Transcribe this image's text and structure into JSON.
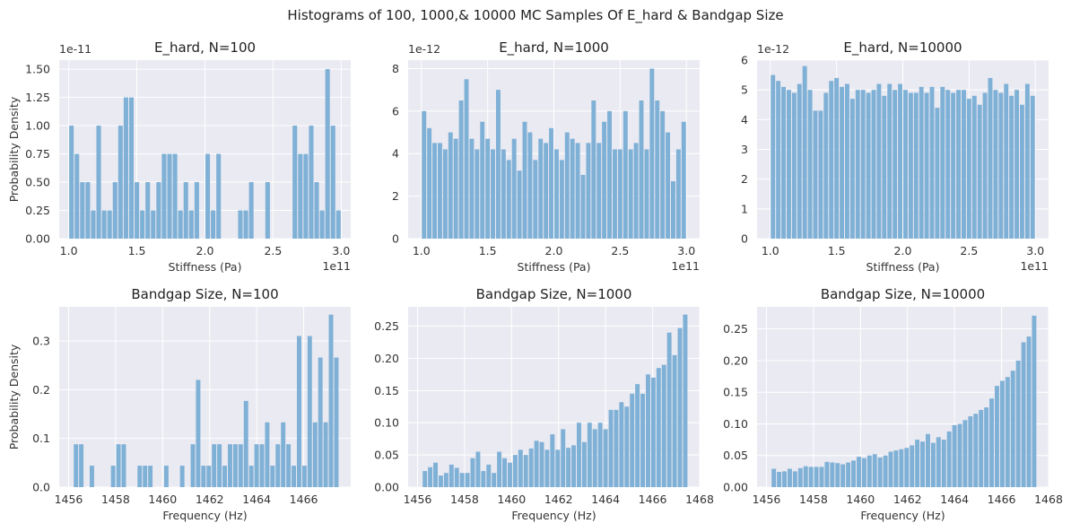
{
  "figure": {
    "suptitle": "Histograms of 100, 1000,& 10000 MC Samples Of E_hard & Bandgap Size",
    "plot_bg": "#eaeaf2",
    "grid_color": "#ffffff",
    "bar_color": "#7fb0d6"
  },
  "chart_data": [
    {
      "type": "bar",
      "title": "E_hard, N=100",
      "xlabel": "Stiffness (Pa)",
      "ylabel": "Probability Density",
      "x_offset_label": "1e11",
      "y_offset_label": "1e-11",
      "bins": 50,
      "bin_range": [
        1.0,
        3.0
      ],
      "xlim": [
        0.93,
        3.07
      ],
      "ylim": [
        0,
        1.58
      ],
      "xticks": [
        1.0,
        1.5,
        2.0,
        2.5,
        3.0
      ],
      "xtick_labels": [
        "1.0",
        "1.5",
        "2.0",
        "2.5",
        "3.0"
      ],
      "yticks": [
        0,
        0.25,
        0.5,
        0.75,
        1.0,
        1.25,
        1.5
      ],
      "ytick_labels": [
        "0.00",
        "0.25",
        "0.50",
        "0.75",
        "1.00",
        "1.25",
        "1.50"
      ],
      "values": [
        1.0,
        0.75,
        0.5,
        0.5,
        0.25,
        1.0,
        0.25,
        0.25,
        0.5,
        1.0,
        1.25,
        1.25,
        0.5,
        0.25,
        0.5,
        0.25,
        0.5,
        0.75,
        0.75,
        0.75,
        0.25,
        0.5,
        0.25,
        0.5,
        0,
        0.75,
        0.25,
        0.75,
        0,
        0,
        0,
        0.25,
        0.25,
        0.5,
        0,
        0,
        0.5,
        0,
        0,
        0,
        0,
        1.0,
        0.75,
        0.75,
        1.0,
        0.5,
        0.25,
        1.5,
        1.0,
        0.25
      ]
    },
    {
      "type": "bar",
      "title": "E_hard, N=1000",
      "xlabel": "Stiffness (Pa)",
      "ylabel": "",
      "x_offset_label": "1e11",
      "y_offset_label": "1e-12",
      "bins": 50,
      "bin_range": [
        1.0,
        3.0
      ],
      "xlim": [
        0.9,
        3.1
      ],
      "ylim": [
        0,
        8.4
      ],
      "xticks": [
        1.0,
        1.5,
        2.0,
        2.5,
        3.0
      ],
      "xtick_labels": [
        "1.0",
        "1.5",
        "2.0",
        "2.5",
        "3.0"
      ],
      "yticks": [
        0,
        2,
        4,
        6,
        8
      ],
      "ytick_labels": [
        "0",
        "2",
        "4",
        "6",
        "8"
      ],
      "values": [
        6.0,
        5.2,
        4.5,
        4.5,
        4.2,
        5.0,
        4.7,
        6.5,
        7.5,
        4.7,
        4.2,
        5.5,
        4.7,
        4.2,
        7.0,
        4.2,
        3.7,
        4.7,
        3.2,
        5.5,
        5.0,
        3.7,
        4.7,
        4.5,
        5.2,
        4.2,
        3.7,
        5.0,
        4.7,
        4.5,
        3.0,
        4.5,
        6.5,
        4.5,
        5.5,
        6.0,
        4.2,
        4.2,
        6.0,
        4.2,
        4.5,
        6.5,
        4.2,
        8.0,
        6.5,
        6.0,
        5.0,
        2.7,
        4.2,
        5.5
      ]
    },
    {
      "type": "bar",
      "title": "E_hard, N=10000",
      "xlabel": "Stiffness (Pa)",
      "ylabel": "",
      "x_offset_label": "1e11",
      "y_offset_label": "1e-12",
      "bins": 50,
      "bin_range": [
        1.0,
        3.0
      ],
      "xlim": [
        0.9,
        3.1
      ],
      "ylim": [
        0,
        6.0
      ],
      "xticks": [
        1.0,
        1.5,
        2.0,
        2.5,
        3.0
      ],
      "xtick_labels": [
        "1.0",
        "1.5",
        "2.0",
        "2.5",
        "3.0"
      ],
      "yticks": [
        0,
        1,
        2,
        3,
        4,
        5,
        6
      ],
      "ytick_labels": [
        "0",
        "1",
        "2",
        "3",
        "4",
        "5",
        "6"
      ],
      "values": [
        5.5,
        5.3,
        5.1,
        5.0,
        4.9,
        5.2,
        5.8,
        5.0,
        4.3,
        4.3,
        4.9,
        5.3,
        5.4,
        5.1,
        5.2,
        4.7,
        5.0,
        5.0,
        4.9,
        5.0,
        5.2,
        4.8,
        5.2,
        5.0,
        5.2,
        5.0,
        4.9,
        4.9,
        5.1,
        4.9,
        5.1,
        4.4,
        5.1,
        5.0,
        4.9,
        5.0,
        5.0,
        4.7,
        4.8,
        4.5,
        4.9,
        5.4,
        5.0,
        4.9,
        5.2,
        4.8,
        5.0,
        4.5,
        5.2,
        4.8
      ]
    },
    {
      "type": "bar",
      "title": "Bandgap Size, N=100",
      "xlabel": "Frequency (Hz)",
      "ylabel": "Probability Density",
      "bins": 50,
      "bin_range": [
        1456.2,
        1467.5
      ],
      "xlim": [
        1455.6,
        1468.0
      ],
      "ylim": [
        0,
        0.37
      ],
      "xticks": [
        1456,
        1458,
        1460,
        1462,
        1464,
        1466
      ],
      "xtick_labels": [
        "1456",
        "1458",
        "1460",
        "1462",
        "1464",
        "1466"
      ],
      "yticks": [
        0,
        0.1,
        0.2,
        0.3
      ],
      "ytick_labels": [
        "0.0",
        "0.1",
        "0.2",
        "0.3"
      ],
      "values": [
        0.088,
        0.088,
        0,
        0.044,
        0,
        0,
        0,
        0.044,
        0.088,
        0.088,
        0,
        0,
        0.044,
        0.044,
        0.044,
        0,
        0,
        0.044,
        0,
        0,
        0.044,
        0,
        0.088,
        0.22,
        0.044,
        0.044,
        0.088,
        0.088,
        0.044,
        0.088,
        0.088,
        0.088,
        0.177,
        0.044,
        0.088,
        0.088,
        0.133,
        0.044,
        0.088,
        0.133,
        0.088,
        0.044,
        0.31,
        0.044,
        0.31,
        0.133,
        0.266,
        0.133,
        0.354,
        0.266
      ]
    },
    {
      "type": "bar",
      "title": "Bandgap Size, N=1000",
      "xlabel": "Frequency (Hz)",
      "ylabel": "",
      "bins": 50,
      "bin_range": [
        1456.2,
        1467.5
      ],
      "xlim": [
        1455.6,
        1468.0
      ],
      "ylim": [
        0,
        0.28
      ],
      "xticks": [
        1456,
        1458,
        1460,
        1462,
        1464,
        1466,
        1468
      ],
      "xtick_labels": [
        "1456",
        "1458",
        "1460",
        "1462",
        "1464",
        "1466",
        "1468"
      ],
      "yticks": [
        0,
        0.05,
        0.1,
        0.15,
        0.2,
        0.25
      ],
      "ytick_labels": [
        "0.00",
        "0.05",
        "0.10",
        "0.15",
        "0.20",
        "0.25"
      ],
      "values": [
        0.025,
        0.031,
        0.038,
        0.018,
        0.022,
        0.035,
        0.03,
        0.022,
        0.022,
        0.045,
        0.055,
        0.025,
        0.035,
        0.022,
        0.055,
        0.045,
        0.038,
        0.05,
        0.058,
        0.05,
        0.06,
        0.072,
        0.07,
        0.058,
        0.082,
        0.058,
        0.09,
        0.061,
        0.065,
        0.1,
        0.07,
        0.1,
        0.09,
        0.1,
        0.09,
        0.12,
        0.12,
        0.132,
        0.125,
        0.145,
        0.16,
        0.145,
        0.175,
        0.17,
        0.185,
        0.19,
        0.24,
        0.205,
        0.247,
        0.268
      ]
    },
    {
      "type": "bar",
      "title": "Bandgap Size, N=10000",
      "xlabel": "Frequency (Hz)",
      "ylabel": "",
      "bins": 50,
      "bin_range": [
        1456.2,
        1467.5
      ],
      "xlim": [
        1455.6,
        1468.0
      ],
      "ylim": [
        0,
        0.285
      ],
      "xticks": [
        1456,
        1458,
        1460,
        1462,
        1464,
        1466,
        1468
      ],
      "xtick_labels": [
        "1456",
        "1458",
        "1460",
        "1462",
        "1464",
        "1466",
        "1468"
      ],
      "yticks": [
        0,
        0.05,
        0.1,
        0.15,
        0.2,
        0.25
      ],
      "ytick_labels": [
        "0.00",
        "0.05",
        "0.10",
        "0.15",
        "0.20",
        "0.25"
      ],
      "values": [
        0.029,
        0.024,
        0.025,
        0.029,
        0.025,
        0.03,
        0.033,
        0.032,
        0.032,
        0.032,
        0.04,
        0.039,
        0.038,
        0.036,
        0.039,
        0.042,
        0.048,
        0.046,
        0.05,
        0.052,
        0.047,
        0.05,
        0.056,
        0.058,
        0.06,
        0.062,
        0.066,
        0.075,
        0.072,
        0.084,
        0.07,
        0.079,
        0.075,
        0.088,
        0.098,
        0.1,
        0.106,
        0.112,
        0.116,
        0.122,
        0.126,
        0.14,
        0.16,
        0.168,
        0.174,
        0.184,
        0.2,
        0.229,
        0.238,
        0.271
      ]
    }
  ]
}
